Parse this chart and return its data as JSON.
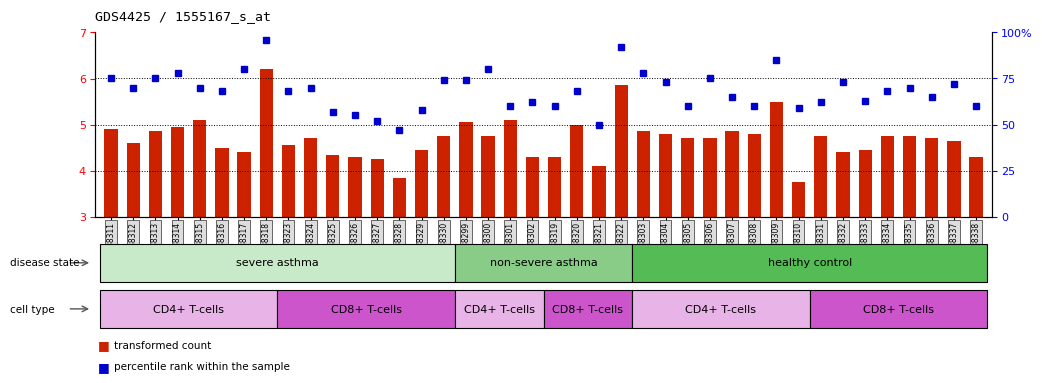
{
  "title": "GDS4425 / 1555167_s_at",
  "samples": [
    "GSM788311",
    "GSM788312",
    "GSM788313",
    "GSM788314",
    "GSM788315",
    "GSM788316",
    "GSM788317",
    "GSM788318",
    "GSM788323",
    "GSM788324",
    "GSM788325",
    "GSM788326",
    "GSM788327",
    "GSM788328",
    "GSM788329",
    "GSM788330",
    "GSM788299",
    "GSM788300",
    "GSM788301",
    "GSM788302",
    "GSM788319",
    "GSM788320",
    "GSM788321",
    "GSM788322",
    "GSM788303",
    "GSM788304",
    "GSM788305",
    "GSM788306",
    "GSM788307",
    "GSM788308",
    "GSM788309",
    "GSM788310",
    "GSM788331",
    "GSM788332",
    "GSM788333",
    "GSM788334",
    "GSM788335",
    "GSM788336",
    "GSM788337",
    "GSM788338"
  ],
  "bar_values": [
    4.9,
    4.6,
    4.85,
    4.95,
    5.1,
    4.5,
    4.4,
    6.2,
    4.55,
    4.7,
    4.35,
    4.3,
    4.25,
    3.85,
    4.45,
    4.75,
    5.05,
    4.75,
    5.1,
    4.3,
    4.3,
    5.0,
    4.1,
    5.85,
    4.85,
    4.8,
    4.7,
    4.7,
    4.85,
    4.8,
    5.5,
    3.75,
    4.75,
    4.4,
    4.45,
    4.75,
    4.75,
    4.7,
    4.65,
    4.3
  ],
  "dot_values_pct": [
    75,
    70,
    75,
    78,
    70,
    68,
    80,
    96,
    68,
    70,
    57,
    55,
    52,
    47,
    58,
    74,
    74,
    80,
    60,
    62,
    60,
    68,
    50,
    92,
    78,
    73,
    60,
    75,
    65,
    60,
    85,
    59,
    62,
    73,
    63,
    68,
    70,
    65,
    72,
    60
  ],
  "bar_color": "#cc2200",
  "dot_color": "#0000cc",
  "ylim_left": [
    3,
    7
  ],
  "ylim_right": [
    0,
    100
  ],
  "yticks_left": [
    3,
    4,
    5,
    6,
    7
  ],
  "yticks_right": [
    0,
    25,
    50,
    75,
    100
  ],
  "dotted_lines_pct": [
    25,
    50,
    75
  ],
  "groups": {
    "disease_state": [
      {
        "label": "severe asthma",
        "start": 0,
        "end": 15,
        "color": "#c8eac8"
      },
      {
        "label": "non-severe asthma",
        "start": 16,
        "end": 23,
        "color": "#88cc88"
      },
      {
        "label": "healthy control",
        "start": 24,
        "end": 39,
        "color": "#55bb55"
      }
    ],
    "cell_type": [
      {
        "label": "CD4+ T-cells",
        "start": 0,
        "end": 7,
        "color": "#e8b4e8"
      },
      {
        "label": "CD8+ T-cells",
        "start": 8,
        "end": 15,
        "color": "#cc55cc"
      },
      {
        "label": "CD4+ T-cells",
        "start": 16,
        "end": 19,
        "color": "#e8b4e8"
      },
      {
        "label": "CD8+ T-cells",
        "start": 20,
        "end": 23,
        "color": "#cc55cc"
      },
      {
        "label": "CD4+ T-cells",
        "start": 24,
        "end": 31,
        "color": "#e8b4e8"
      },
      {
        "label": "CD8+ T-cells",
        "start": 32,
        "end": 39,
        "color": "#cc55cc"
      }
    ]
  },
  "legend": [
    {
      "label": "transformed count",
      "color": "#cc2200"
    },
    {
      "label": "percentile rank within the sample",
      "color": "#0000cc"
    }
  ]
}
